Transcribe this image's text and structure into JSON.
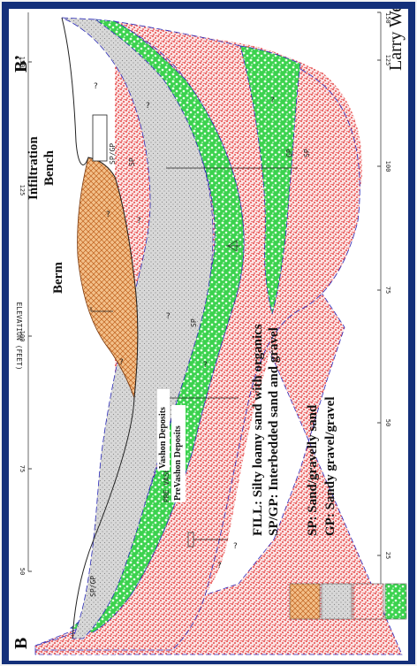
{
  "section": {
    "left_label": "B",
    "right_label": "B’"
  },
  "axis": {
    "left_title": "ELEVATION (FEET)",
    "left_ticks": [
      "150",
      "125",
      "100",
      "75",
      "50"
    ],
    "right_ticks": [
      "150",
      "125",
      "100",
      "75",
      "50",
      "25"
    ]
  },
  "features": {
    "berm": "Berm",
    "infiltration_line1": "Infiltration",
    "infiltration_line2": "Bench"
  },
  "deposits": {
    "vashon": "Vashon Deposits",
    "prevashon": "PreVashon Deposits",
    "pre_vashon_cad": "PRE VASHON DEPOSITS ?"
  },
  "unit_labels": {
    "sp_gp_left": "SP/GP",
    "sp_gp_right": "SP/GP",
    "sp_left": "SP",
    "sp_mid": "SP",
    "sp_right": "SP",
    "sp_far": "SP",
    "gp_right": "GP",
    "question": "?"
  },
  "legend": [
    {
      "code": "FILL:",
      "text": "Silty loamy sand with organics",
      "color": "#d98a3c"
    },
    {
      "code": "SP/GP:",
      "text": "Interbedded sand and gravel",
      "color": "#bdbdbd"
    },
    {
      "code": "SP:",
      "text": "Sand/gravelly sand",
      "color": "#e22a2a"
    },
    {
      "code": "GP:",
      "text": "Sandy gravel/gravel",
      "color": "#27c43c"
    }
  ],
  "credit": "Larry West"
}
